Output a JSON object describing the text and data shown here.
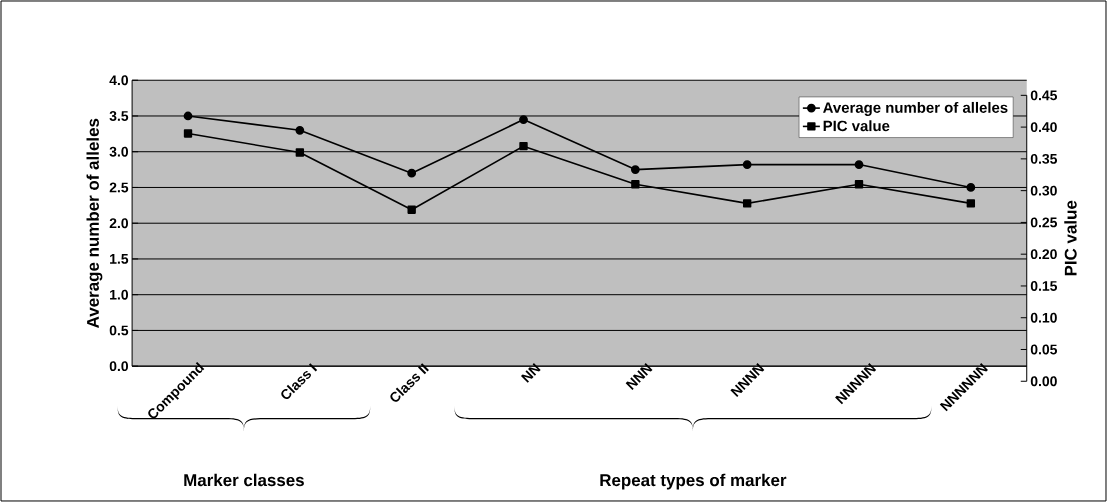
{
  "chart_data": {
    "type": "line",
    "ylabel": "Average number of alleles",
    "y2label": "PIC value",
    "categories": [
      "Compound",
      "Class I",
      "Class II",
      "NN",
      "NNN",
      "NNNN",
      "NNNNN",
      "NNNNNN"
    ],
    "series": [
      {
        "name": "Average number of alleles",
        "color": "#000000",
        "marker": "circle",
        "values": [
          3.5,
          3.3,
          2.7,
          3.45,
          2.75,
          2.82,
          2.82,
          2.5
        ]
      },
      {
        "name": "PIC value",
        "color": "#000000",
        "marker": "square",
        "axis": "y2",
        "values": [
          0.39,
          0.36,
          0.27,
          0.37,
          0.31,
          0.28,
          0.31,
          0.28
        ]
      }
    ],
    "ylim": [
      0,
      4
    ],
    "yticks": [
      {
        "value": 0,
        "label": "0.0"
      },
      {
        "value": 0.5,
        "label": "0.5"
      },
      {
        "value": 1,
        "label": "1.0"
      },
      {
        "value": 1.5,
        "label": "1.5"
      },
      {
        "value": 2,
        "label": "2.0"
      },
      {
        "value": 2.5,
        "label": "2.5"
      },
      {
        "value": 3,
        "label": "3.0"
      },
      {
        "value": 3.5,
        "label": "3.5"
      },
      {
        "value": 4,
        "label": "4.0"
      }
    ],
    "y2lim": [
      0,
      0.45
    ],
    "y2ticks": [
      {
        "value": 0,
        "label": "0.00"
      },
      {
        "value": 0.05,
        "label": "0.05"
      },
      {
        "value": 0.1,
        "label": "0.10"
      },
      {
        "value": 0.15,
        "label": "0.15"
      },
      {
        "value": 0.2,
        "label": "0.20"
      },
      {
        "value": 0.25,
        "label": "0.25"
      },
      {
        "value": 0.3,
        "label": "0.30"
      },
      {
        "value": 0.35,
        "label": "0.35"
      },
      {
        "value": 0.4,
        "label": "0.40"
      },
      {
        "value": 0.45,
        "label": "0.45"
      }
    ],
    "grid": "y",
    "legend": "top right",
    "annotations": [
      "Marker classes",
      "Repeat types of marker"
    ]
  }
}
